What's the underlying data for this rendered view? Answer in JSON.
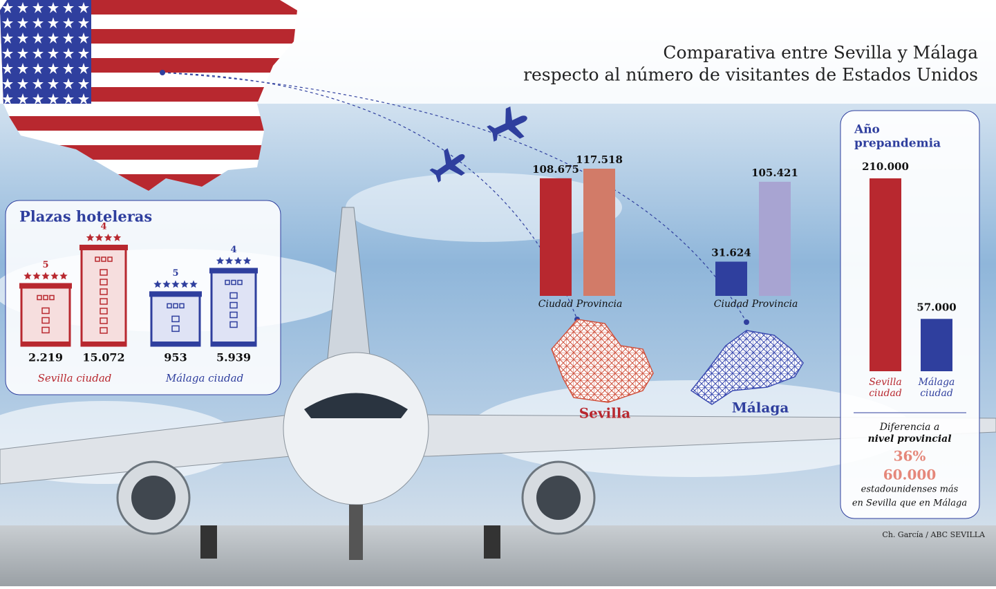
{
  "header": {
    "title": [
      "Comparativa entre Sevilla y Málaga",
      "respecto al número de visitantes de Estados Unidos"
    ]
  },
  "credit": "Ch. García / ABC SEVILLA",
  "chart_data": [
    {
      "type": "bar",
      "title": "Plazas hoteleras",
      "series": [
        {
          "name": "Sevilla ciudad",
          "color": "#b8282f",
          "stars": [
            5,
            4
          ],
          "values": [
            2219,
            15072
          ],
          "value_labels": [
            "2.219",
            "15.072"
          ]
        },
        {
          "name": "Málaga ciudad",
          "color": "#2f3f9e",
          "stars": [
            5,
            4
          ],
          "values": [
            953,
            5939
          ],
          "value_labels": [
            "953",
            "5.939"
          ]
        }
      ]
    },
    {
      "type": "bar",
      "series": [
        {
          "name": "Sevilla",
          "categories": [
            "Ciudad",
            "Provincia"
          ],
          "colors": [
            "#b8282f",
            "#d27b68"
          ],
          "values": [
            108675,
            117518
          ],
          "value_labels": [
            "108.675",
            "117.518"
          ]
        },
        {
          "name": "Málaga",
          "categories": [
            "Ciudad",
            "Provincia"
          ],
          "colors": [
            "#2f3f9e",
            "#a8a4d2"
          ],
          "values": [
            31624,
            105421
          ],
          "value_labels": [
            "31.624",
            "105.421"
          ]
        }
      ]
    },
    {
      "type": "bar",
      "title": [
        "Año",
        "prepandemia"
      ],
      "categories": [
        "Sevilla ciudad",
        "Málaga ciudad"
      ],
      "colors": [
        "#b8282f",
        "#2f3f9e"
      ],
      "values": [
        210000,
        57000
      ],
      "value_labels": [
        "210.000",
        "57.000"
      ],
      "note": {
        "line1": "Diferencia a",
        "line2": "nivel provincial",
        "percent": "36%",
        "amount": "60.000",
        "line3": "estadounidenses más",
        "line4": "en Sevilla que en Málaga"
      }
    }
  ]
}
